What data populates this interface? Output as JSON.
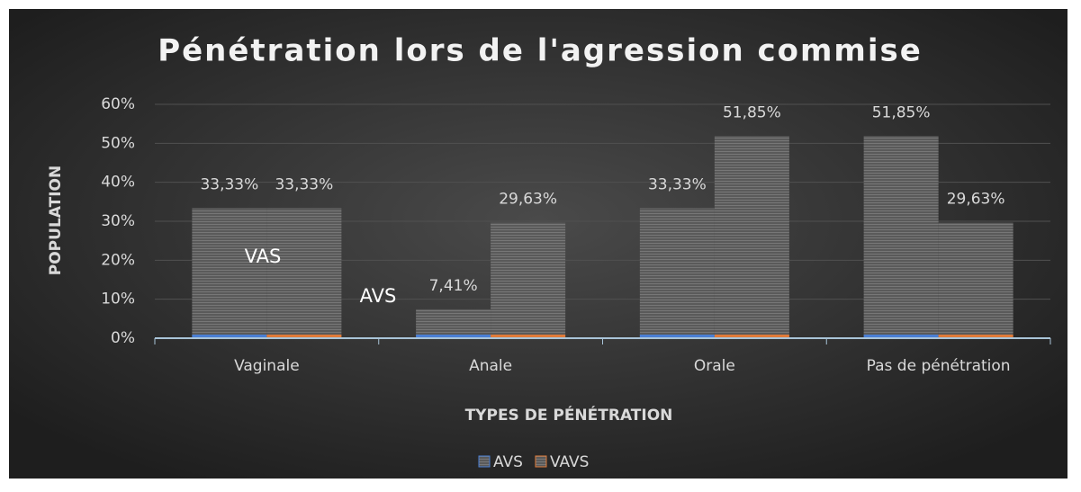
{
  "chart_data": {
    "type": "bar",
    "title": "Pénétration lors de l'agression commise",
    "x_label": "TYPES DE PÉNÉTRATION",
    "y_label": "POPULATION",
    "categories": [
      "Vaginale",
      "Anale",
      "Orale",
      "Pas de pénétration"
    ],
    "series": [
      {
        "name": "AVS",
        "color": "#4a7fd4",
        "values": [
          33.33,
          7.41,
          33.33,
          51.85
        ],
        "value_labels": [
          "33,33%",
          "7,41%",
          "33,33%",
          "51,85%"
        ]
      },
      {
        "name": "VAVS",
        "color": "#e07b3a",
        "values": [
          33.33,
          29.63,
          51.85,
          29.63
        ],
        "value_labels": [
          "33,33%",
          "29,63%",
          "51,85%",
          "29,63%"
        ]
      }
    ],
    "annotations": [
      "VAS",
      "AVS"
    ],
    "ylim": [
      0,
      60
    ],
    "yticks": [
      {
        "value": 0,
        "label": "0%"
      },
      {
        "value": 10,
        "label": "10%"
      },
      {
        "value": 20,
        "label": "20%"
      },
      {
        "value": 30,
        "label": "30%"
      },
      {
        "value": 40,
        "label": "40%"
      },
      {
        "value": 50,
        "label": "50%"
      },
      {
        "value": 60,
        "label": "60%"
      }
    ],
    "grid": true,
    "legend": "bottom"
  }
}
